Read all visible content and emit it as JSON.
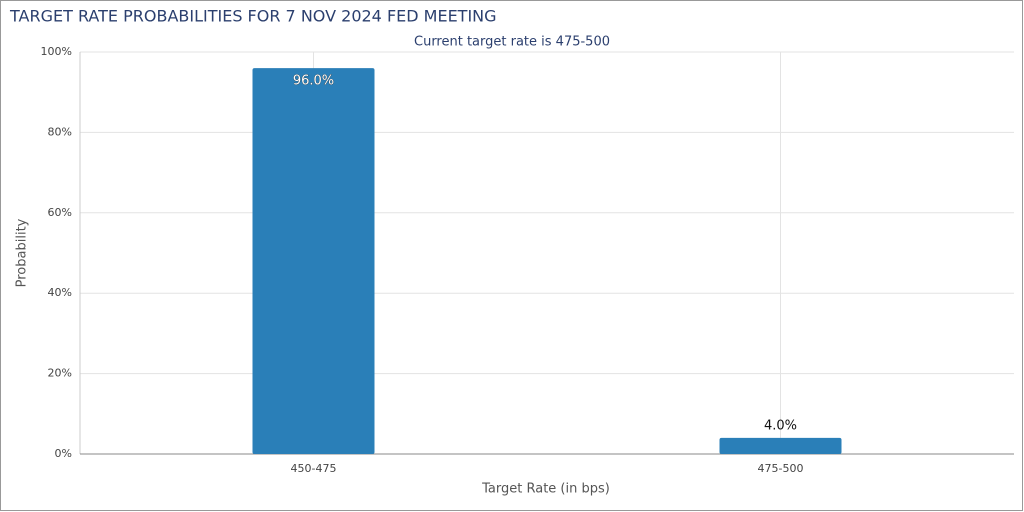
{
  "chart_data": {
    "type": "bar",
    "title": "TARGET RATE PROBABILITIES FOR 7 NOV 2024 FED MEETING",
    "subtitle": "Current target rate is 475-500",
    "x_label": "Target Rate (in bps)",
    "y_label": "Probability",
    "categories": [
      "450-475",
      "475-500"
    ],
    "values": [
      96,
      4
    ],
    "value_labels": [
      "96.0%",
      "4.0%"
    ],
    "color": "#2a7fb8",
    "ylim": [
      0,
      100
    ],
    "yticks": [
      {
        "value": 0,
        "label": "0%"
      },
      {
        "value": 20,
        "label": "20%"
      },
      {
        "value": 40,
        "label": "40%"
      },
      {
        "value": 60,
        "label": "60%"
      },
      {
        "value": 80,
        "label": "80%"
      },
      {
        "value": 100,
        "label": "100%"
      }
    ],
    "grid": true
  }
}
